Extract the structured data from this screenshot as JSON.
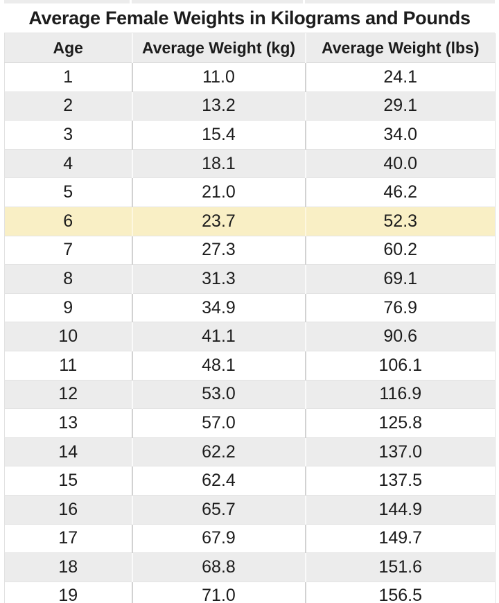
{
  "title": "Average Female Weights in Kilograms and Pounds",
  "table": {
    "columns": [
      "Age",
      "Average Weight (kg)",
      "Average Weight (lbs)"
    ],
    "highlighted_age": "6",
    "highlight_color": "#f9efc5",
    "stripe_color": "#ececec",
    "rows": [
      [
        "1",
        "11.0",
        "24.1"
      ],
      [
        "2",
        "13.2",
        "29.1"
      ],
      [
        "3",
        "15.4",
        "34.0"
      ],
      [
        "4",
        "18.1",
        "40.0"
      ],
      [
        "5",
        "21.0",
        "46.2"
      ],
      [
        "6",
        "23.7",
        "52.3"
      ],
      [
        "7",
        "27.3",
        "60.2"
      ],
      [
        "8",
        "31.3",
        "69.1"
      ],
      [
        "9",
        "34.9",
        "76.9"
      ],
      [
        "10",
        "41.1",
        "90.6"
      ],
      [
        "11",
        "48.1",
        "106.1"
      ],
      [
        "12",
        "53.0",
        "116.9"
      ],
      [
        "13",
        "57.0",
        "125.8"
      ],
      [
        "14",
        "62.2",
        "137.0"
      ],
      [
        "15",
        "62.4",
        "137.5"
      ],
      [
        "16",
        "65.7",
        "144.9"
      ],
      [
        "17",
        "67.9",
        "149.7"
      ],
      [
        "18",
        "68.8",
        "151.6"
      ],
      [
        "19",
        "71.0",
        "156.5"
      ]
    ]
  }
}
